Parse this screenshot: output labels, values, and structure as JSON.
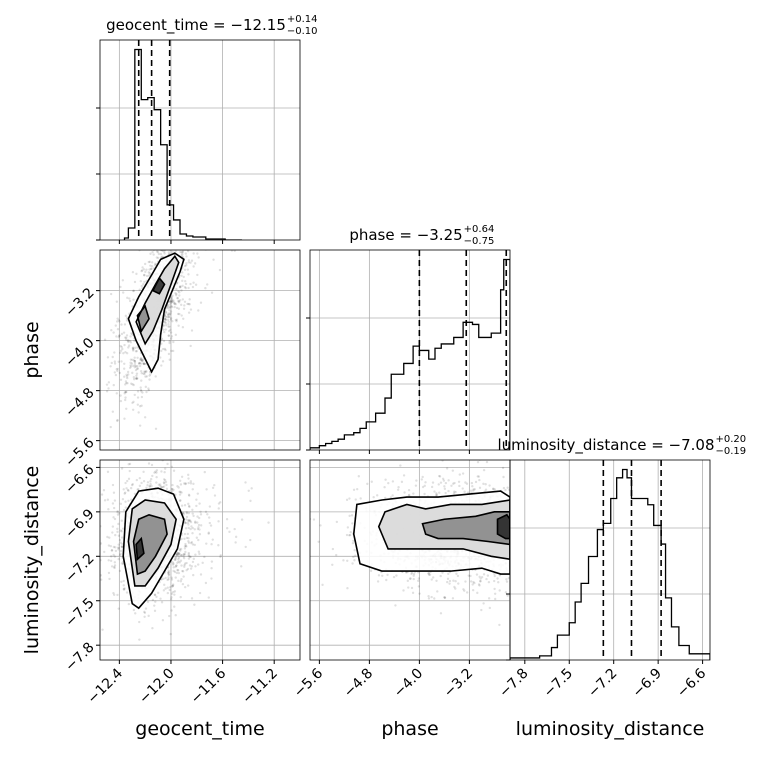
{
  "chart_data": {
    "type": "corner",
    "parameters": [
      {
        "name": "geocent_time",
        "range": [
          -12.55,
          -11.0
        ],
        "ticks": [
          -12.4,
          -12.0,
          -11.6,
          -11.2
        ],
        "tick_labels": [
          "−12.4",
          "−12.0",
          "−11.6",
          "−11.2"
        ],
        "title_main": "geocent_time = −12.15",
        "title_sup": "+0.14",
        "title_sub": "−0.10",
        "median": -12.15,
        "quantiles": [
          -12.25,
          -12.15,
          -12.01
        ]
      },
      {
        "name": "phase",
        "range": [
          -5.75,
          -2.55
        ],
        "ticks": [
          -5.6,
          -4.8,
          -4.0,
          -3.2
        ],
        "tick_labels": [
          "−5.6",
          "−4.8",
          "−4.0",
          "−3.2"
        ],
        "title_main": "phase = −3.25",
        "title_sup": "+0.64",
        "title_sub": "−0.75",
        "median": -3.25,
        "quantiles": [
          -4.0,
          -3.25,
          -2.61
        ]
      },
      {
        "name": "luminosity_distance",
        "range": [
          -7.9,
          -6.55
        ],
        "ticks": [
          -7.8,
          -7.5,
          -7.2,
          -6.9,
          -6.6
        ],
        "tick_labels": [
          "−7.8",
          "−7.5",
          "−7.2",
          "−6.9",
          "−6.6"
        ],
        "title_main": "luminosity_distance = −7.08",
        "title_sup": "+0.20",
        "title_sub": "−0.19",
        "median": -7.08,
        "quantiles": [
          -7.27,
          -7.08,
          -6.88
        ]
      }
    ],
    "histograms": [
      {
        "parameter": "geocent_time",
        "bin_edges": [
          -12.36,
          -12.33,
          -12.28,
          -12.23,
          -12.18,
          -12.13,
          -12.08,
          -12.03,
          -11.98,
          -11.93,
          -11.88,
          -11.83,
          -11.73,
          -11.58,
          -11.48,
          -11.45
        ],
        "counts": [
          2,
          12,
          190,
          140,
          142,
          130,
          95,
          35,
          20,
          6,
          4,
          3,
          1,
          0,
          0
        ]
      },
      {
        "parameter": "phase",
        "bin_edges": [
          -5.75,
          -5.6,
          -5.5,
          -5.4,
          -5.3,
          -5.2,
          -5.05,
          -4.95,
          -4.85,
          -4.7,
          -4.55,
          -4.45,
          -4.25,
          -4.1,
          -4.0,
          -3.85,
          -3.75,
          -3.65,
          -3.45,
          -3.3,
          -3.15,
          -3.05,
          -2.85,
          -2.7,
          -2.65,
          -2.55
        ],
        "counts": [
          1,
          2,
          3,
          4,
          5,
          7,
          8,
          10,
          13,
          17,
          24,
          35,
          40,
          48,
          46,
          42,
          47,
          49,
          52,
          59,
          58,
          52,
          54,
          74,
          88
        ]
      },
      {
        "parameter": "luminosity_distance",
        "bin_edges": [
          -7.9,
          -7.8,
          -7.7,
          -7.62,
          -7.58,
          -7.5,
          -7.46,
          -7.42,
          -7.37,
          -7.31,
          -7.27,
          -7.22,
          -7.18,
          -7.14,
          -7.11,
          -7.08,
          -7.05,
          -7.02,
          -6.97,
          -6.93,
          -6.88,
          -6.85,
          -6.81,
          -6.76,
          -6.69,
          -6.64,
          -6.55
        ],
        "counts": [
          1,
          1,
          2,
          6,
          12,
          18,
          28,
          37,
          50,
          63,
          66,
          78,
          88,
          92,
          88,
          78,
          78,
          78,
          75,
          65,
          56,
          30,
          16,
          7,
          3,
          3
        ]
      }
    ],
    "contours": [
      {
        "x": "geocent_time",
        "y": "phase",
        "levels": [
          [
            [
              -12.15,
              -4.5
            ],
            [
              -12.27,
              -4.0
            ],
            [
              -12.33,
              -3.65
            ],
            [
              -12.25,
              -3.3
            ],
            [
              -12.15,
              -2.95
            ],
            [
              -12.08,
              -2.7
            ],
            [
              -11.97,
              -2.6
            ],
            [
              -11.9,
              -2.7
            ],
            [
              -11.93,
              -2.9
            ],
            [
              -11.98,
              -3.15
            ],
            [
              -12.05,
              -3.5
            ],
            [
              -12.08,
              -3.9
            ],
            [
              -12.1,
              -4.3
            ]
          ],
          [
            [
              -12.2,
              -4.05
            ],
            [
              -12.27,
              -3.7
            ],
            [
              -12.2,
              -3.4
            ],
            [
              -12.12,
              -3.1
            ],
            [
              -12.05,
              -2.85
            ],
            [
              -11.97,
              -2.65
            ],
            [
              -11.94,
              -2.75
            ],
            [
              -12.0,
              -3.1
            ],
            [
              -12.07,
              -3.5
            ],
            [
              -12.14,
              -3.85
            ]
          ],
          [
            [
              -12.23,
              -3.85
            ],
            [
              -12.26,
              -3.6
            ],
            [
              -12.2,
              -3.45
            ],
            [
              -12.17,
              -3.65
            ]
          ],
          [
            [
              -12.14,
              -3.2
            ],
            [
              -12.09,
              -3.0
            ],
            [
              -12.05,
              -3.1
            ],
            [
              -12.09,
              -3.25
            ]
          ]
        ]
      },
      {
        "x": "geocent_time",
        "y": "luminosity_distance",
        "levels": [
          [
            [
              -12.3,
              -7.52
            ],
            [
              -12.37,
              -7.2
            ],
            [
              -12.35,
              -6.9
            ],
            [
              -12.25,
              -6.76
            ],
            [
              -12.1,
              -6.74
            ],
            [
              -11.98,
              -6.78
            ],
            [
              -11.9,
              -6.95
            ],
            [
              -11.95,
              -7.15
            ],
            [
              -12.05,
              -7.3
            ],
            [
              -12.15,
              -7.45
            ],
            [
              -12.25,
              -7.55
            ]
          ],
          [
            [
              -12.28,
              -7.4
            ],
            [
              -12.33,
              -7.1
            ],
            [
              -12.3,
              -6.88
            ],
            [
              -12.2,
              -6.82
            ],
            [
              -12.05,
              -6.84
            ],
            [
              -11.96,
              -6.95
            ],
            [
              -12.0,
              -7.12
            ],
            [
              -12.1,
              -7.28
            ],
            [
              -12.2,
              -7.4
            ]
          ],
          [
            [
              -12.26,
              -7.32
            ],
            [
              -12.29,
              -7.1
            ],
            [
              -12.25,
              -6.95
            ],
            [
              -12.17,
              -6.92
            ],
            [
              -12.05,
              -6.95
            ],
            [
              -12.03,
              -7.05
            ],
            [
              -12.12,
              -7.2
            ],
            [
              -12.2,
              -7.3
            ]
          ],
          [
            [
              -12.26,
              -7.22
            ],
            [
              -12.27,
              -7.12
            ],
            [
              -12.23,
              -7.08
            ],
            [
              -12.21,
              -7.18
            ]
          ]
        ]
      },
      {
        "x": "phase",
        "y": "luminosity_distance",
        "levels": [
          [
            [
              -4.95,
              -7.25
            ],
            [
              -5.05,
              -7.05
            ],
            [
              -5.0,
              -6.85
            ],
            [
              -4.6,
              -6.82
            ],
            [
              -4.2,
              -6.8
            ],
            [
              -3.7,
              -6.8
            ],
            [
              -3.2,
              -6.78
            ],
            [
              -2.7,
              -6.76
            ],
            [
              -2.55,
              -6.8
            ],
            [
              -2.55,
              -7.32
            ],
            [
              -2.7,
              -7.32
            ],
            [
              -3.0,
              -7.28
            ],
            [
              -3.5,
              -7.3
            ],
            [
              -4.0,
              -7.3
            ],
            [
              -4.6,
              -7.3
            ]
          ],
          [
            [
              -4.5,
              -7.15
            ],
            [
              -4.65,
              -7.0
            ],
            [
              -4.55,
              -6.9
            ],
            [
              -4.2,
              -6.85
            ],
            [
              -3.9,
              -6.88
            ],
            [
              -3.5,
              -6.85
            ],
            [
              -3.0,
              -6.85
            ],
            [
              -2.55,
              -6.82
            ],
            [
              -2.55,
              -7.22
            ],
            [
              -2.85,
              -7.2
            ],
            [
              -3.3,
              -7.15
            ],
            [
              -3.8,
              -7.15
            ]
          ],
          [
            [
              -3.9,
              -7.05
            ],
            [
              -3.95,
              -6.98
            ],
            [
              -3.6,
              -6.95
            ],
            [
              -3.1,
              -6.93
            ],
            [
              -2.8,
              -6.9
            ],
            [
              -2.55,
              -6.9
            ],
            [
              -2.55,
              -7.12
            ],
            [
              -2.9,
              -7.1
            ],
            [
              -3.3,
              -7.08
            ],
            [
              -3.7,
              -7.08
            ]
          ],
          [
            [
              -2.75,
              -7.05
            ],
            [
              -2.75,
              -6.95
            ],
            [
              -2.6,
              -6.92
            ],
            [
              -2.55,
              -6.95
            ],
            [
              -2.55,
              -7.08
            ],
            [
              -2.62,
              -7.08
            ]
          ]
        ]
      }
    ],
    "grid": true,
    "xlabel_rotation": 45,
    "ylabel_rotation": 45
  }
}
